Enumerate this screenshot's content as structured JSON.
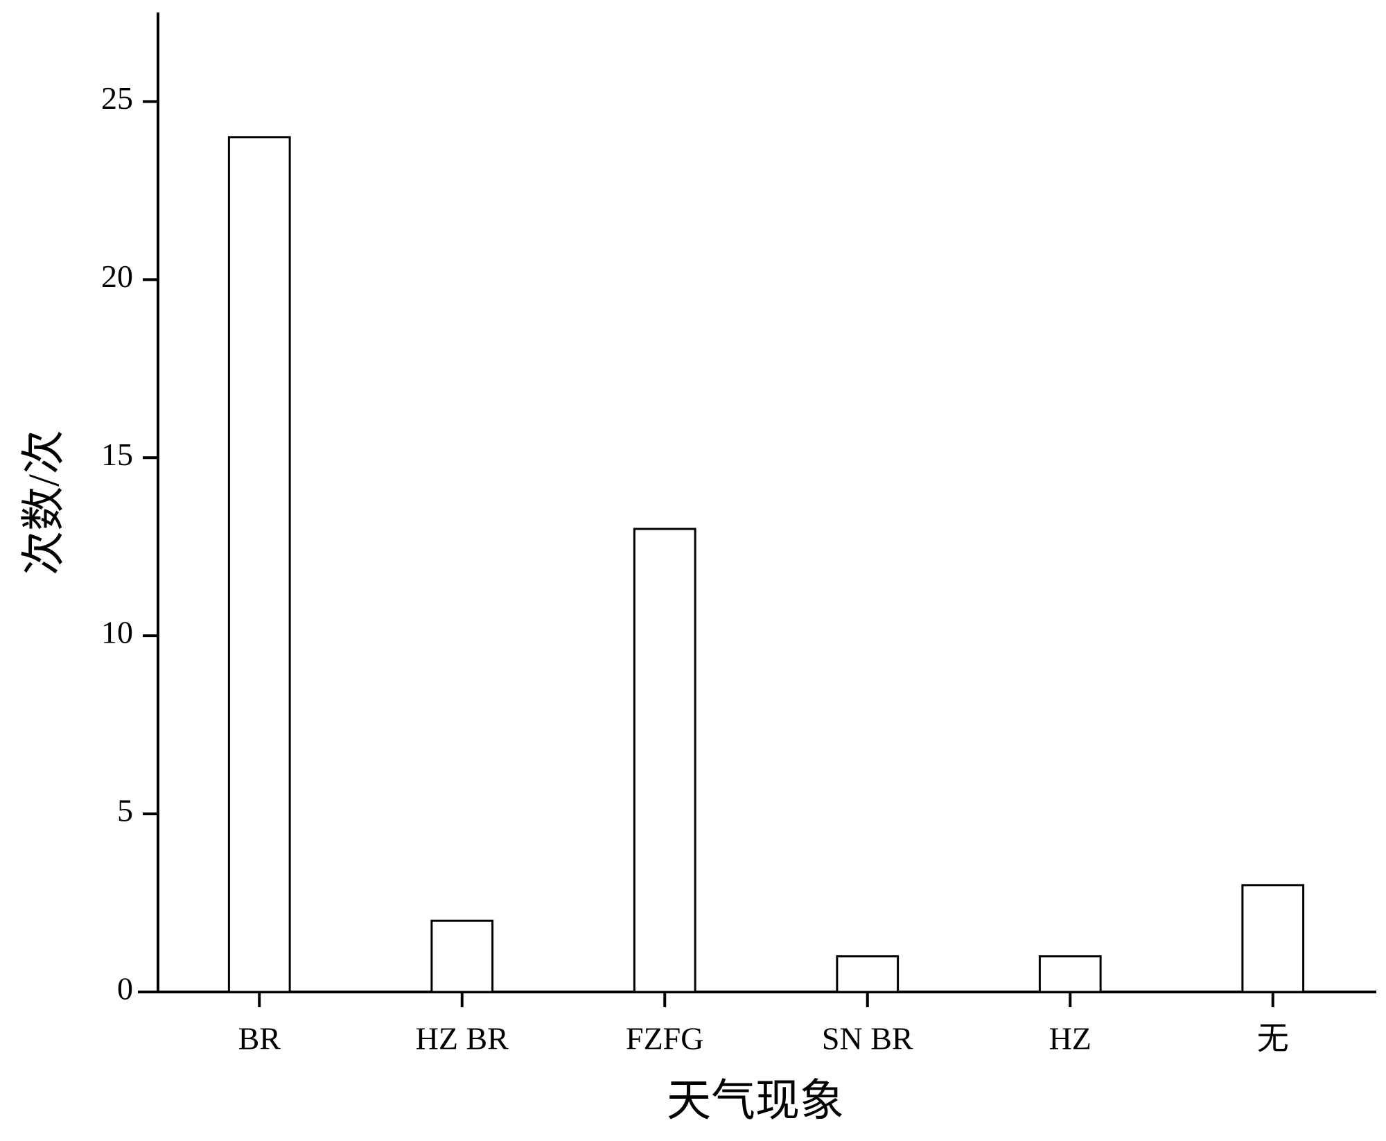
{
  "chart_data": {
    "type": "bar",
    "x_label": "天气现象",
    "y_label": "次数/次",
    "categories": [
      "BR",
      "HZ BR",
      "FZFG",
      "SN BR",
      "HZ",
      "无"
    ],
    "values": [
      24,
      2,
      13,
      1,
      1,
      3
    ],
    "color": "#ffffff",
    "ylim": [
      0,
      27.5
    ],
    "yticks": [
      0,
      5,
      10,
      15,
      20,
      25
    ],
    "grid": false
  }
}
